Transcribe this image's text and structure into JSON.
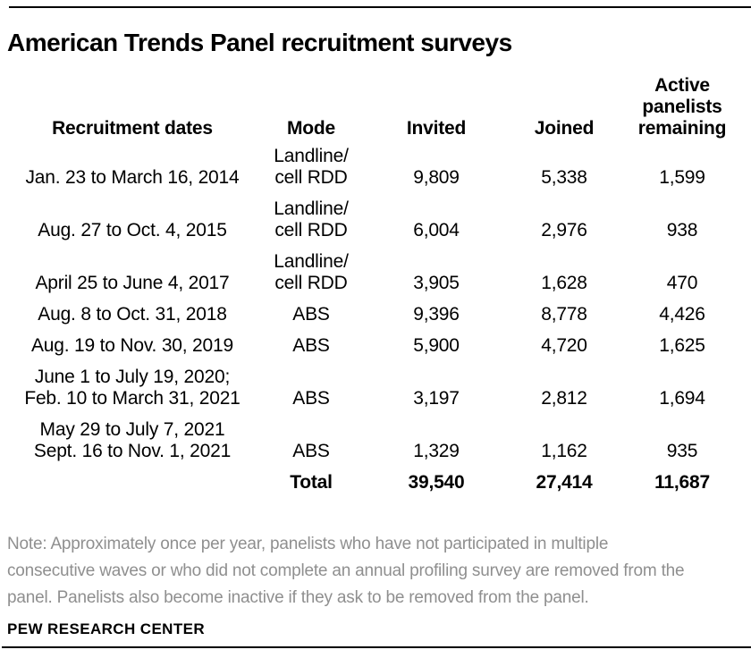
{
  "colors": {
    "text": "#000000",
    "note_text": "#8f8f8f",
    "rule": "#000000",
    "background": "#ffffff"
  },
  "title": "American Trends Panel recruitment surveys",
  "table": {
    "headers": {
      "dates": "Recruitment dates",
      "mode": "Mode",
      "invited": "Invited",
      "joined": "Joined",
      "remaining": "Active\npanelists\nremaining"
    },
    "rows": [
      {
        "dates": "Jan. 23 to March 16, 2014",
        "mode": "Landline/\ncell RDD",
        "invited": "9,809",
        "joined": "5,338",
        "remaining": "1,599"
      },
      {
        "dates": "Aug. 27 to Oct. 4, 2015",
        "mode": "Landline/\ncell RDD",
        "invited": "6,004",
        "joined": "2,976",
        "remaining": "938"
      },
      {
        "dates": "April 25 to June 4, 2017",
        "mode": "Landline/\ncell RDD",
        "invited": "3,905",
        "joined": "1,628",
        "remaining": "470"
      },
      {
        "dates": "Aug. 8 to Oct. 31, 2018",
        "mode": "ABS",
        "invited": "9,396",
        "joined": "8,778",
        "remaining": "4,426"
      },
      {
        "dates": "Aug. 19 to Nov. 30, 2019",
        "mode": "ABS",
        "invited": "5,900",
        "joined": "4,720",
        "remaining": "1,625"
      },
      {
        "dates": "June 1 to July 19, 2020;\nFeb. 10 to March 31, 2021",
        "mode": "ABS",
        "invited": "3,197",
        "joined": "2,812",
        "remaining": "1,694"
      },
      {
        "dates": "May 29 to July 7, 2021\nSept. 16 to Nov. 1, 2021",
        "mode": "ABS",
        "invited": "1,329",
        "joined": "1,162",
        "remaining": "935"
      }
    ],
    "total": {
      "label": "Total",
      "invited": "39,540",
      "joined": "27,414",
      "remaining": "11,687"
    }
  },
  "note": "Note: Approximately once per year, panelists who have not participated in multiple\nconsecutive waves or who did not complete an annual profiling survey are removed from the\npanel. Panelists also become inactive if they ask to be removed from the panel.",
  "source": "PEW RESEARCH CENTER"
}
